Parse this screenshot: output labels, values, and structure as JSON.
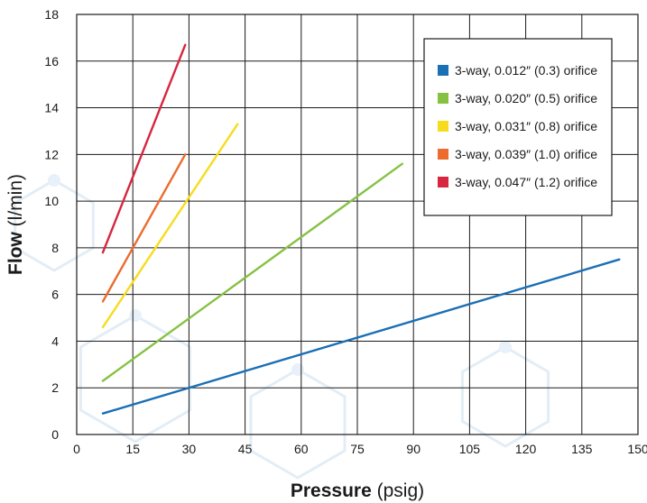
{
  "chart_data": {
    "type": "line",
    "title": "",
    "xlabel": {
      "bold": "Pressure",
      "normal": " (psig)"
    },
    "ylabel": {
      "bold": "Flow",
      "normal": " (l/min)"
    },
    "xlim": [
      0,
      150
    ],
    "ylim": [
      0,
      18
    ],
    "xticks": [
      0,
      15,
      30,
      45,
      60,
      75,
      90,
      105,
      120,
      135,
      150
    ],
    "yticks": [
      0,
      2,
      4,
      6,
      8,
      10,
      12,
      14,
      16,
      18
    ],
    "grid": true,
    "legend_position": "top-right",
    "series": [
      {
        "name": "3-way, 0.012″ (0.3) orifice",
        "color": "#1a6fb5",
        "x": [
          7,
          145
        ],
        "y": [
          0.9,
          7.5
        ]
      },
      {
        "name": "3-way, 0.020″ (0.5) orifice",
        "color": "#86c142",
        "x": [
          7,
          87
        ],
        "y": [
          2.3,
          11.6
        ]
      },
      {
        "name": "3-way, 0.031″ (0.8) orifice",
        "color": "#f7dc1e",
        "x": [
          7,
          43
        ],
        "y": [
          4.6,
          13.3
        ]
      },
      {
        "name": "3-way, 0.039″ (1.0) orifice",
        "color": "#ec6b2d",
        "x": [
          7,
          29
        ],
        "y": [
          5.7,
          12.0
        ]
      },
      {
        "name": "3-way, 0.047″ (1.2) orifice",
        "color": "#d7263d",
        "x": [
          7,
          29
        ],
        "y": [
          7.8,
          16.7
        ]
      }
    ]
  }
}
